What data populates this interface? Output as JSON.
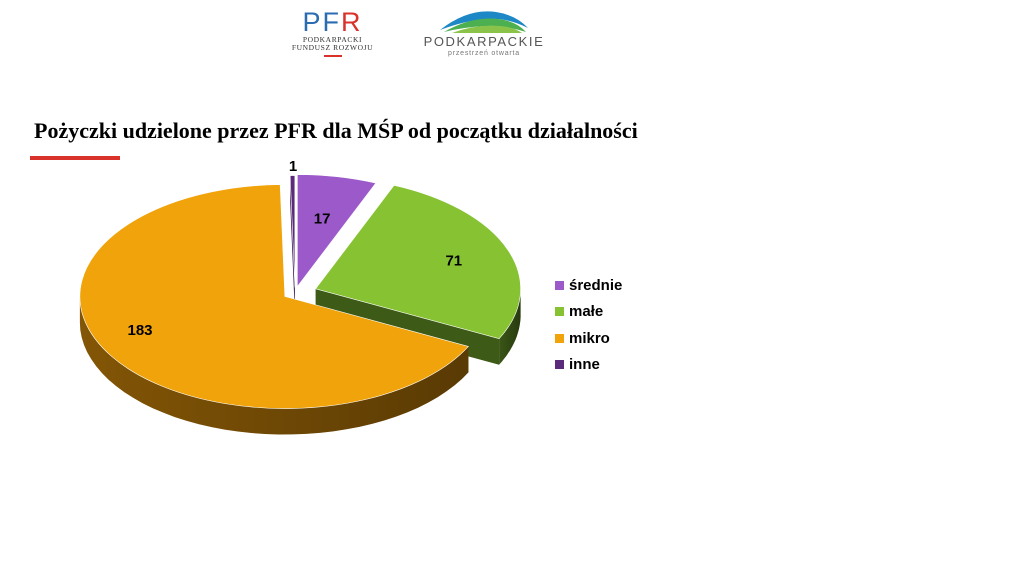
{
  "header": {
    "pfr_logo": {
      "letters": "PFR",
      "line1": "PODKARPACKI",
      "line2": "FUNDUSZ ROZWOJU"
    },
    "podkarpackie_logo": {
      "name": "PODKARPACKIE",
      "tagline": "przestrzeń otwarta"
    }
  },
  "slide": {
    "title": "Pożyczki udzielone przez PFR dla MŚP od początku działalności"
  },
  "chart_data": {
    "type": "pie",
    "style": "3d-exploded",
    "legend_position": "right",
    "labels": [
      "średnie",
      "małe",
      "mikro",
      "inne"
    ],
    "values": [
      17,
      71,
      183,
      1
    ],
    "colors": [
      "#9b59c9",
      "#86c232",
      "#f0a30a",
      "#5b2a7a"
    ],
    "side_colors": [
      "#6b3a8f",
      "#3d5a17",
      "#8a5a06",
      "#3b1a52"
    ]
  }
}
